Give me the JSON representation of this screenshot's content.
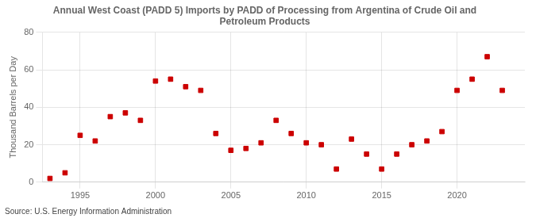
{
  "chart_data": {
    "type": "scatter",
    "title": "Annual West Coast (PADD 5) Imports by PADD of Processing from Argentina of Crude Oil and\nPetroleum Products",
    "y_label": "Thousand Barrels per Day",
    "annotations": [
      "Source: U.S. Energy Information Administration"
    ],
    "x": [
      1993,
      1994,
      1995,
      1996,
      1997,
      1998,
      1999,
      2000,
      2001,
      2002,
      2003,
      2004,
      2005,
      2006,
      2007,
      2008,
      2009,
      2010,
      2011,
      2012,
      2013,
      2014,
      2015,
      2016,
      2017,
      2018,
      2019,
      2020,
      2021,
      2022,
      2023
    ],
    "values": [
      2,
      5,
      25,
      22,
      35,
      37,
      33,
      54,
      55,
      51,
      49,
      26,
      17,
      18,
      21,
      33,
      26,
      21,
      20,
      7,
      23,
      15,
      7,
      15,
      20,
      22,
      27,
      49,
      55,
      67,
      49
    ],
    "color": "#cc0000",
    "marker": "square",
    "xlim": [
      1992.5,
      2024.5
    ],
    "xticks": [
      1995,
      2000,
      2005,
      2010,
      2015,
      2020
    ],
    "ylim": [
      0,
      80
    ],
    "yticks": [
      0,
      20,
      40,
      60,
      80
    ],
    "grid": true
  }
}
